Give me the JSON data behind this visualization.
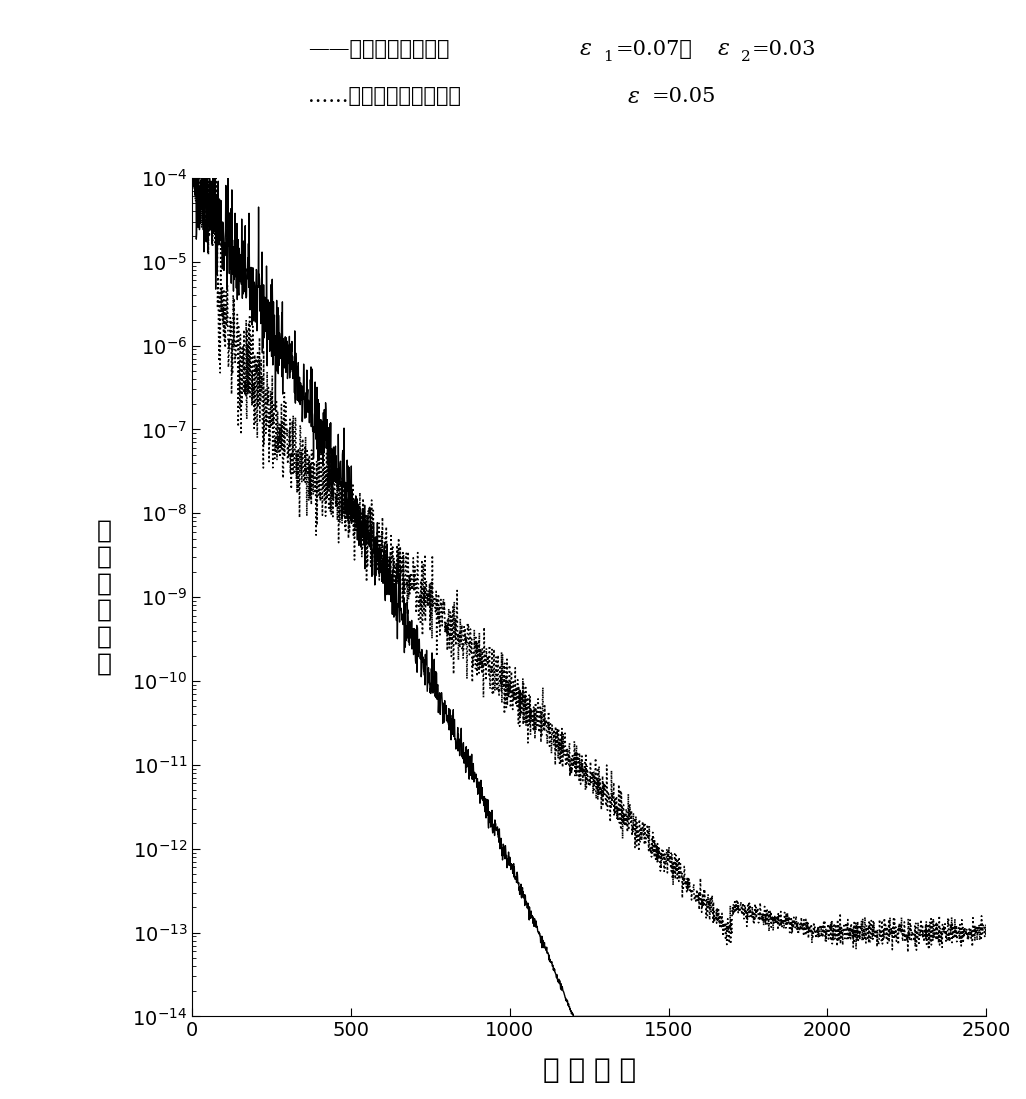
{
  "xlabel": "迭 代 次 数",
  "ylabel": "残\n差\n均\n方\n根\n値",
  "xlim": [
    0,
    2500
  ],
  "ylim_log_min": -14,
  "ylim_log_max": -4,
  "xticks": [
    0,
    500,
    1000,
    1500,
    2000,
    2500
  ],
  "yticks_exp": [
    -14,
    -12,
    -10,
    -8,
    -6,
    -4
  ],
  "line1_color": "#000000",
  "line2_color": "#000000",
  "background_color": "#ffffff",
  "legend_line1": "——异向涡量限制法，",
  "legend_line1b": "ε ₁=0.07，",
  "legend_line1c": "ε ₂=0.03",
  "legend_line2": "......原始的涡量限制法，",
  "legend_line2b": "ε =0.05"
}
